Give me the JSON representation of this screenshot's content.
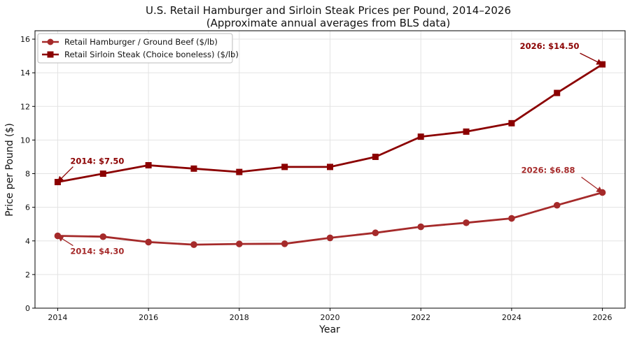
{
  "chart_data": {
    "type": "line",
    "title": "U.S. Retail Hamburger and Sirloin Steak Prices per Pound, 2014–2026",
    "subtitle": "(Approximate annual averages from BLS data)",
    "xlabel": "Year",
    "ylabel": "Price per Pound ($)",
    "x": [
      2014,
      2015,
      2016,
      2017,
      2018,
      2019,
      2020,
      2021,
      2022,
      2023,
      2024,
      2025,
      2026
    ],
    "xticks": [
      "2014",
      "2016",
      "2018",
      "2020",
      "2022",
      "2024",
      "2026"
    ],
    "yticks": [
      "0",
      "2",
      "4",
      "6",
      "8",
      "10",
      "12",
      "14",
      "16"
    ],
    "xlim": [
      2013.5,
      2026.5
    ],
    "ylim": [
      0,
      16.5
    ],
    "grid": true,
    "legend_position": "top-left",
    "series": [
      {
        "name": "Retail Hamburger / Ground Beef ($/lb)",
        "color": "#a52a2a",
        "marker": "circle",
        "values": [
          4.3,
          4.25,
          3.93,
          3.78,
          3.82,
          3.83,
          4.18,
          4.48,
          4.84,
          5.08,
          5.34,
          6.12,
          6.88
        ]
      },
      {
        "name": "Retail Sirloin Steak (Choice boneless) ($/lb)",
        "color": "#8b0000",
        "marker": "square",
        "values": [
          7.5,
          8.0,
          8.5,
          8.3,
          8.1,
          8.4,
          8.4,
          9.0,
          10.2,
          10.5,
          11.0,
          12.8,
          14.5
        ]
      }
    ],
    "annotations": [
      {
        "text": "2014: $7.50",
        "series": 1,
        "x": 2014,
        "y": 7.5
      },
      {
        "text": "2026: $14.50",
        "series": 1,
        "x": 2026,
        "y": 14.5
      },
      {
        "text": "2014: $4.30",
        "series": 0,
        "x": 2014,
        "y": 4.3
      },
      {
        "text": "2026: $6.88",
        "series": 0,
        "x": 2026,
        "y": 6.88
      }
    ]
  }
}
